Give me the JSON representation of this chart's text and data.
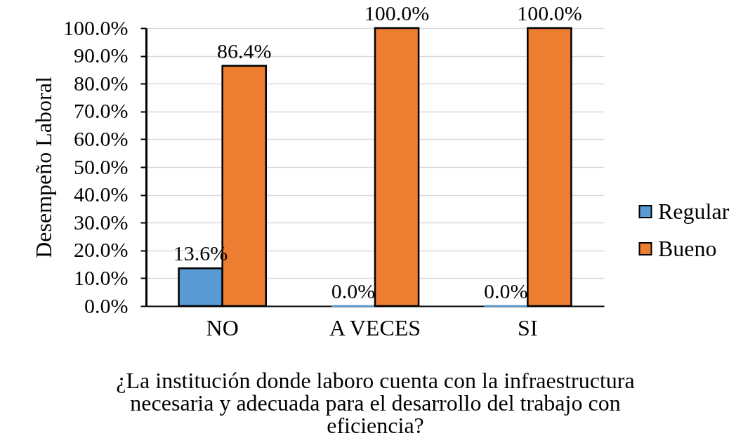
{
  "chart_data": {
    "type": "bar",
    "xlabel": "¿La institución donde laboro cuenta con la infraestructura necesaria y adecuada   para el desarrollo del trabajo con eficiencia?",
    "ylabel": "Desempeño Laboral",
    "categories": [
      "NO",
      "A VECES",
      "SI"
    ],
    "series": [
      {
        "name": "Regular",
        "color": "#5b9bd5",
        "values": [
          13.6,
          0.0,
          0.0
        ],
        "value_labels": [
          "13.6%",
          "0.0%",
          "0.0%"
        ]
      },
      {
        "name": "Bueno",
        "color": "#ed7d31",
        "values": [
          86.4,
          100.0,
          100.0
        ],
        "value_labels": [
          "86.4%",
          "100.0%",
          "100.0%"
        ]
      }
    ],
    "ylim": [
      0,
      100
    ],
    "yticks": [
      {
        "value": 0,
        "label": "0.0%"
      },
      {
        "value": 10,
        "label": "10.0%"
      },
      {
        "value": 20,
        "label": "20.0%"
      },
      {
        "value": 30,
        "label": "30.0%"
      },
      {
        "value": 40,
        "label": "40.0%"
      },
      {
        "value": 50,
        "label": "50.0%"
      },
      {
        "value": 60,
        "label": "60.0%"
      },
      {
        "value": 70,
        "label": "70.0%"
      },
      {
        "value": 80,
        "label": "80.0%"
      },
      {
        "value": 90,
        "label": "90.0%"
      },
      {
        "value": 100,
        "label": "100.0%"
      }
    ],
    "grid": "y",
    "legend": "right"
  }
}
